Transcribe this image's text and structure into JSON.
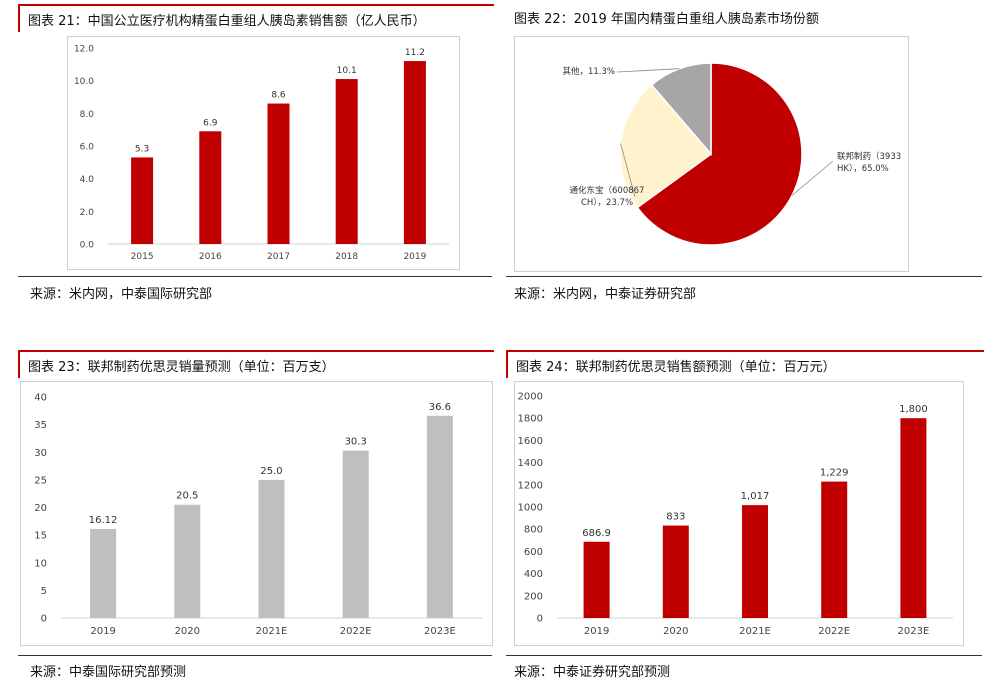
{
  "panels": [
    {
      "title": "图表 21：中国公立医疗机构精蛋白重组人胰岛素销售额（亿人民币）",
      "source": "来源：米内网，中泰国际研究部"
    },
    {
      "title": "图表 22：2019 年国内精蛋白重组人胰岛素市场份额",
      "source": "来源：米内网，中泰证券研究部"
    },
    {
      "title": "图表 23：联邦制药优思灵销量预测（单位：百万支）",
      "source": "来源：中泰国际研究部预测"
    },
    {
      "title": "图表 24：联邦制药优思灵销售额预测（单位：百万元）",
      "source": "来源：中泰证券研究部预测"
    }
  ],
  "chart_data": [
    {
      "type": "bar",
      "categories": [
        "2015",
        "2016",
        "2017",
        "2018",
        "2019"
      ],
      "values": [
        5.3,
        6.9,
        8.6,
        10.1,
        11.2
      ],
      "value_labels": [
        "5.3",
        "6.9",
        "8.6",
        "10.1",
        "11.2"
      ],
      "yticks": [
        "0.0",
        "2.0",
        "4.0",
        "6.0",
        "8.0",
        "10.0",
        "12.0"
      ],
      "ylim": [
        0,
        12
      ],
      "color": "#c00000",
      "grid": false
    },
    {
      "type": "pie",
      "slices": [
        {
          "label": "联邦制药（3933 HK），65.0%",
          "label_lines": [
            "联邦制药（3933",
            "HK），65.0%"
          ],
          "value": 65.0,
          "color": "#c00000"
        },
        {
          "label": "通化东宝（600867 CH），23.7%",
          "label_lines": [
            "通化东宝（600867",
            "CH），23.7%"
          ],
          "value": 23.7,
          "color": "#fff2cc"
        },
        {
          "label": "其他，11.3%",
          "label_lines": [
            "其他，11.3%"
          ],
          "value": 11.3,
          "color": "#a6a6a6"
        }
      ]
    },
    {
      "type": "bar",
      "categories": [
        "2019",
        "2020",
        "2021E",
        "2022E",
        "2023E"
      ],
      "values": [
        16.12,
        20.5,
        25.0,
        30.3,
        36.6
      ],
      "value_labels": [
        "16.12",
        "20.5",
        "25.0",
        "30.3",
        "36.6"
      ],
      "yticks": [
        "0",
        "5",
        "10",
        "15",
        "20",
        "25",
        "30",
        "35",
        "40"
      ],
      "ylim": [
        0,
        40
      ],
      "color": "#bfbfbf",
      "grid": false
    },
    {
      "type": "bar",
      "categories": [
        "2019",
        "2020",
        "2021E",
        "2022E",
        "2023E"
      ],
      "values": [
        686.9,
        833,
        1017,
        1229,
        1800
      ],
      "value_labels": [
        "686.9",
        "833",
        "1,017",
        "1,229",
        "1,800"
      ],
      "yticks": [
        "0",
        "200",
        "400",
        "600",
        "800",
        "1000",
        "1200",
        "1400",
        "1600",
        "1800",
        "2000"
      ],
      "ylim": [
        0,
        2000
      ],
      "color": "#c00000",
      "grid": false
    }
  ]
}
